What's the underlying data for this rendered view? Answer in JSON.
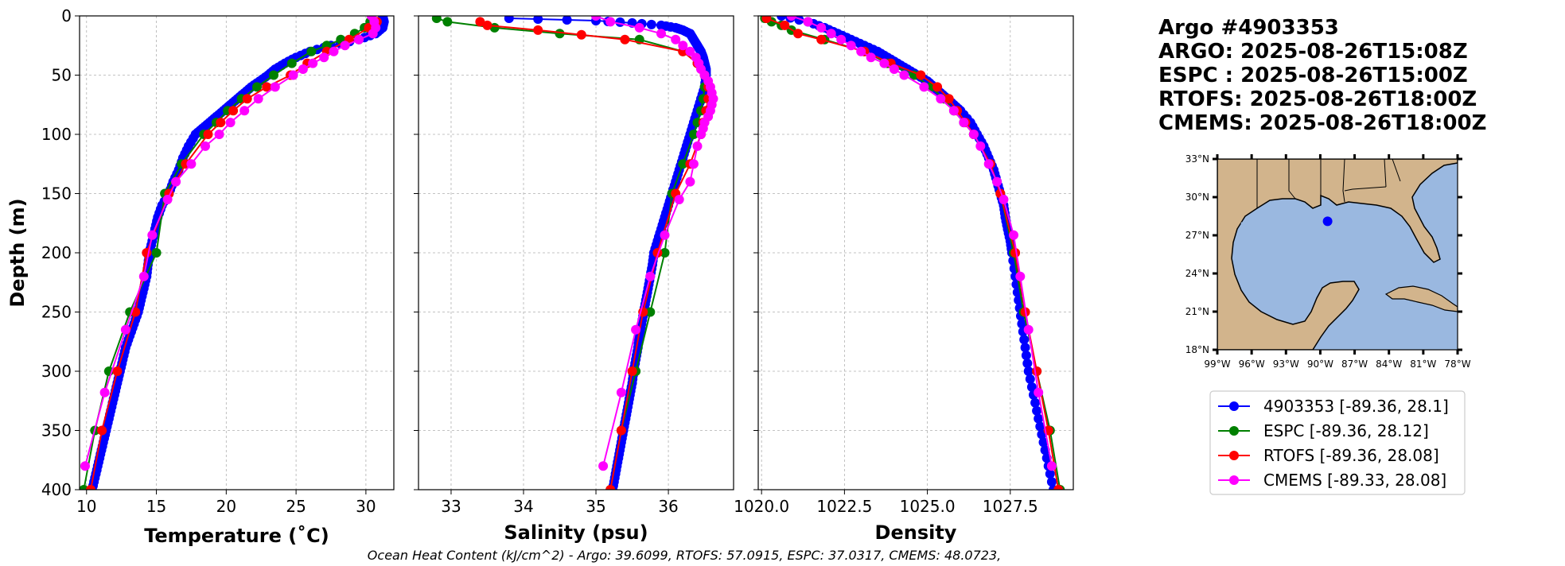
{
  "header": {
    "lines": [
      "Argo #4903353",
      "ARGO: 2025-08-26T15:08Z",
      "ESPC : 2025-08-26T15:00Z",
      "RTOFS: 2025-08-26T18:00Z",
      "CMEMS: 2025-08-26T18:00Z"
    ]
  },
  "footer": {
    "ohc_text": "Ocean Heat Content (kJ/cm^2) - Argo: 39.6099,  RTOFS: 57.0915,  ESPC: 37.0317,  CMEMS: 48.0723,"
  },
  "legend": {
    "entries": [
      {
        "label": "4903353 [-89.36, 28.1]",
        "color": "#0000ff"
      },
      {
        "label": "ESPC [-89.36, 28.12]",
        "color": "#008000"
      },
      {
        "label": "RTOFS [-89.36, 28.08]",
        "color": "#ff0000"
      },
      {
        "label": "CMEMS [-89.33, 28.08]",
        "color": "#ff00ff"
      }
    ]
  },
  "colors": {
    "argo": "#0000ff",
    "espc": "#008000",
    "rtofs": "#ff0000",
    "cmems": "#ff00ff",
    "land": "#d2b48c",
    "ocean": "#9ab8e0",
    "grid": "#b0b0b0"
  },
  "map": {
    "lon_range": [
      -99,
      -78
    ],
    "lat_range": [
      18,
      33
    ],
    "lon_ticks": [
      "99°W",
      "96°W",
      "93°W",
      "90°W",
      "87°W",
      "84°W",
      "81°W",
      "78°W"
    ],
    "lat_ticks": [
      "18°N",
      "21°N",
      "24°N",
      "27°N",
      "30°N",
      "33°N"
    ],
    "float_position": {
      "lon": -89.36,
      "lat": 28.1
    }
  },
  "chart_data": [
    {
      "type": "line",
      "title": "",
      "xlabel": "Temperature (˚C)",
      "ylabel": "Depth (m)",
      "xlim": [
        9.5,
        32
      ],
      "ylim": [
        400,
        0
      ],
      "xticks": [
        10,
        15,
        20,
        25,
        30
      ],
      "xtick_labels": [
        "10",
        "15",
        "20",
        "25",
        "30"
      ],
      "yticks": [
        0,
        50,
        100,
        150,
        200,
        250,
        300,
        350,
        400
      ],
      "ytick_labels": [
        "0",
        "50",
        "100",
        "150",
        "200",
        "250",
        "300",
        "350",
        "400"
      ],
      "grid": true,
      "series": [
        {
          "name": "Argo",
          "color": "#0000ff",
          "dense": true,
          "depth": [
            0,
            5,
            10,
            15,
            20,
            25,
            30,
            35,
            40,
            45,
            50,
            55,
            60,
            65,
            70,
            75,
            80,
            85,
            90,
            95,
            100,
            110,
            120,
            130,
            140,
            150,
            160,
            170,
            180,
            190,
            200,
            210,
            220,
            230,
            240,
            250,
            260,
            270,
            280,
            290,
            300,
            310,
            320,
            330,
            340,
            350,
            360,
            370,
            380,
            390,
            400
          ],
          "values": [
            31.2,
            31.3,
            31.2,
            30.7,
            29.5,
            27.5,
            26.0,
            25.0,
            24.2,
            23.5,
            23.0,
            22.4,
            21.8,
            21.3,
            20.8,
            20.3,
            19.8,
            19.3,
            18.8,
            18.3,
            17.8,
            17.3,
            16.9,
            16.6,
            16.2,
            15.9,
            15.4,
            15.1,
            14.9,
            14.7,
            14.5,
            14.4,
            14.3,
            14.1,
            13.9,
            13.7,
            13.4,
            13.1,
            12.8,
            12.6,
            12.4,
            12.2,
            12.0,
            11.8,
            11.6,
            11.4,
            11.2,
            11.0,
            10.8,
            10.6,
            10.4
          ]
        },
        {
          "name": "ESPC",
          "color": "#008000",
          "dense": false,
          "depth": [
            5,
            10,
            15,
            20,
            25,
            30,
            40,
            50,
            60,
            70,
            80,
            90,
            100,
            125,
            150,
            200,
            250,
            300,
            350,
            400
          ],
          "values": [
            30.3,
            29.9,
            29.2,
            28.2,
            27.2,
            26.1,
            24.7,
            23.4,
            22.2,
            21.1,
            20.1,
            19.3,
            18.4,
            16.8,
            15.6,
            15.0,
            13.1,
            11.6,
            10.6,
            9.8
          ]
        },
        {
          "name": "RTOFS",
          "color": "#ff0000",
          "dense": false,
          "depth": [
            5,
            10,
            20,
            30,
            40,
            50,
            60,
            70,
            80,
            90,
            100,
            125,
            150,
            200,
            250,
            300,
            350,
            400
          ],
          "values": [
            30.8,
            30.2,
            28.8,
            27.2,
            25.8,
            24.6,
            22.9,
            21.5,
            20.5,
            19.6,
            18.7,
            17.1,
            15.9,
            14.3,
            13.5,
            12.2,
            11.1,
            10.3
          ]
        },
        {
          "name": "CMEMS",
          "color": "#ff00ff",
          "dense": false,
          "depth": [
            0,
            5,
            10,
            15,
            20,
            25,
            30,
            35,
            40,
            45,
            50,
            60,
            70,
            80,
            90,
            100,
            110,
            125,
            140,
            155,
            185,
            220,
            265,
            318,
            380
          ],
          "values": [
            30.4,
            30.6,
            30.7,
            30.5,
            29.5,
            28.5,
            27.7,
            27.0,
            26.2,
            25.5,
            24.8,
            23.5,
            22.3,
            21.3,
            20.3,
            19.5,
            18.5,
            17.5,
            16.4,
            15.8,
            14.7,
            14.1,
            12.8,
            11.3,
            9.9
          ]
        }
      ]
    },
    {
      "type": "line",
      "title": "",
      "xlabel": "Salinity (psu)",
      "ylabel": "",
      "xlim": [
        32.55,
        36.9
      ],
      "ylim": [
        400,
        0
      ],
      "xticks": [
        33,
        34,
        35,
        36
      ],
      "xtick_labels": [
        "33",
        "34",
        "35",
        "36"
      ],
      "yticks": [
        0,
        50,
        100,
        150,
        200,
        250,
        300,
        350,
        400
      ],
      "grid": true,
      "series": [
        {
          "name": "Argo",
          "color": "#0000ff",
          "dense": true,
          "depth": [
            2,
            4,
            6,
            8,
            10,
            12,
            15,
            20,
            25,
            30,
            35,
            40,
            45,
            50,
            60,
            70,
            80,
            90,
            100,
            110,
            120,
            130,
            140,
            150,
            160,
            170,
            180,
            190,
            200,
            210,
            220,
            230,
            240,
            250,
            260,
            270,
            280,
            290,
            300,
            310,
            320,
            330,
            340,
            350,
            360,
            370,
            380,
            390,
            400
          ],
          "values": [
            33.8,
            35.0,
            35.5,
            35.9,
            36.1,
            36.2,
            36.3,
            36.35,
            36.4,
            36.45,
            36.48,
            36.5,
            36.52,
            36.52,
            36.5,
            36.45,
            36.4,
            36.35,
            36.3,
            36.25,
            36.2,
            36.15,
            36.1,
            36.05,
            36.0,
            35.95,
            35.9,
            35.85,
            35.8,
            35.78,
            35.75,
            35.72,
            35.69,
            35.66,
            35.63,
            35.6,
            35.58,
            35.55,
            35.52,
            35.5,
            35.47,
            35.44,
            35.41,
            35.38,
            35.35,
            35.32,
            35.29,
            35.26,
            35.23
          ]
        },
        {
          "name": "ESPC",
          "color": "#008000",
          "dense": false,
          "depth": [
            2,
            5,
            10,
            15,
            20,
            30,
            40,
            50,
            60,
            70,
            80,
            90,
            100,
            125,
            150,
            200,
            250,
            300,
            350,
            400
          ],
          "values": [
            32.8,
            32.95,
            33.6,
            34.5,
            35.6,
            36.2,
            36.4,
            36.5,
            36.5,
            36.48,
            36.45,
            36.4,
            36.35,
            36.2,
            36.05,
            35.95,
            35.75,
            35.55,
            35.35,
            35.2
          ]
        },
        {
          "name": "RTOFS",
          "color": "#ff0000",
          "dense": false,
          "depth": [
            5,
            8,
            12,
            16,
            20,
            30,
            40,
            50,
            60,
            70,
            80,
            90,
            100,
            125,
            150,
            200,
            250,
            300,
            350,
            400
          ],
          "values": [
            33.4,
            33.5,
            34.2,
            34.8,
            35.4,
            36.2,
            36.4,
            36.5,
            36.55,
            36.55,
            36.52,
            36.48,
            36.45,
            36.3,
            36.1,
            35.85,
            35.65,
            35.5,
            35.35,
            35.2
          ]
        },
        {
          "name": "CMEMS",
          "color": "#ff00ff",
          "dense": false,
          "depth": [
            0,
            5,
            10,
            15,
            20,
            25,
            30,
            35,
            40,
            45,
            50,
            55,
            60,
            65,
            70,
            75,
            80,
            85,
            90,
            95,
            100,
            110,
            125,
            140,
            155,
            185,
            220,
            265,
            318,
            380
          ],
          "values": [
            35.0,
            35.2,
            35.6,
            35.9,
            36.1,
            36.2,
            36.3,
            36.38,
            36.42,
            36.45,
            36.5,
            36.55,
            36.58,
            36.6,
            36.62,
            36.6,
            36.58,
            36.55,
            36.5,
            36.48,
            36.45,
            36.4,
            36.35,
            36.3,
            36.15,
            35.95,
            35.75,
            35.55,
            35.35,
            35.1
          ]
        }
      ]
    },
    {
      "type": "line",
      "title": "",
      "xlabel": "Density",
      "ylabel": "",
      "xlim": [
        1019.9,
        1029.4
      ],
      "ylim": [
        400,
        0
      ],
      "xticks": [
        1020.0,
        1022.5,
        1025.0,
        1027.5
      ],
      "xtick_labels": [
        "1020.0",
        "1022.5",
        "1025.0",
        "1027.5"
      ],
      "yticks": [
        0,
        50,
        100,
        150,
        200,
        250,
        300,
        350,
        400
      ],
      "grid": true,
      "series": [
        {
          "name": "Argo",
          "color": "#0000ff",
          "dense": true,
          "depth": [
            0,
            5,
            10,
            15,
            20,
            25,
            30,
            35,
            40,
            45,
            50,
            55,
            60,
            65,
            70,
            75,
            80,
            90,
            100,
            110,
            120,
            130,
            140,
            150,
            160,
            170,
            180,
            190,
            200,
            220,
            240,
            260,
            280,
            300,
            320,
            340,
            360,
            380,
            400
          ],
          "values": [
            1020.6,
            1021.4,
            1021.9,
            1022.3,
            1022.7,
            1023.1,
            1023.5,
            1023.8,
            1024.1,
            1024.4,
            1024.7,
            1025.0,
            1025.2,
            1025.4,
            1025.6,
            1025.8,
            1026.0,
            1026.3,
            1026.5,
            1026.7,
            1026.85,
            1027.0,
            1027.1,
            1027.2,
            1027.3,
            1027.35,
            1027.42,
            1027.5,
            1027.55,
            1027.65,
            1027.75,
            1027.85,
            1027.95,
            1028.05,
            1028.2,
            1028.35,
            1028.5,
            1028.65,
            1028.8
          ]
        },
        {
          "name": "ESPC",
          "color": "#008000",
          "dense": false,
          "depth": [
            2,
            5,
            8,
            12,
            20,
            30,
            40,
            50,
            60,
            70,
            80,
            90,
            100,
            125,
            150,
            200,
            250,
            300,
            350,
            400
          ],
          "values": [
            1020.1,
            1020.3,
            1020.6,
            1020.9,
            1021.9,
            1023.1,
            1023.8,
            1024.6,
            1025.1,
            1025.5,
            1025.8,
            1026.1,
            1026.4,
            1026.9,
            1027.2,
            1027.6,
            1027.9,
            1028.3,
            1028.7,
            1029.0
          ]
        },
        {
          "name": "RTOFS",
          "color": "#ff0000",
          "dense": false,
          "depth": [
            2,
            8,
            15,
            20,
            30,
            40,
            50,
            60,
            70,
            80,
            90,
            100,
            125,
            150,
            200,
            250,
            300,
            350,
            400
          ],
          "values": [
            1020.15,
            1020.7,
            1021.1,
            1021.8,
            1023.1,
            1023.9,
            1024.8,
            1025.3,
            1025.65,
            1025.9,
            1026.15,
            1026.4,
            1026.9,
            1027.2,
            1027.65,
            1027.95,
            1028.3,
            1028.65,
            1028.95
          ]
        },
        {
          "name": "CMEMS",
          "color": "#ff00ff",
          "dense": false,
          "depth": [
            0,
            5,
            10,
            15,
            20,
            25,
            30,
            35,
            40,
            45,
            50,
            60,
            70,
            80,
            90,
            100,
            110,
            125,
            140,
            155,
            185,
            220,
            265,
            318,
            380
          ],
          "values": [
            1020.9,
            1021.4,
            1021.8,
            1022.1,
            1022.4,
            1022.7,
            1023.0,
            1023.3,
            1023.7,
            1024.0,
            1024.3,
            1024.9,
            1025.4,
            1025.8,
            1026.1,
            1026.4,
            1026.6,
            1026.85,
            1027.1,
            1027.3,
            1027.6,
            1027.8,
            1028.05,
            1028.35,
            1028.75
          ]
        }
      ]
    }
  ]
}
